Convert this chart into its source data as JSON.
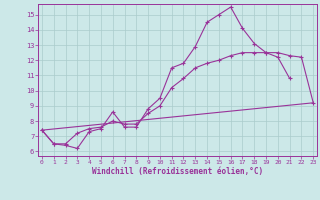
{
  "xlabel": "Windchill (Refroidissement éolien,°C)",
  "bg_color": "#cce8e8",
  "line_color": "#993399",
  "grid_color": "#aacccc",
  "xticks": [
    0,
    1,
    2,
    3,
    4,
    5,
    6,
    7,
    8,
    9,
    10,
    11,
    12,
    13,
    14,
    15,
    16,
    17,
    18,
    19,
    20,
    21,
    22,
    23
  ],
  "yticks": [
    6,
    7,
    8,
    9,
    10,
    11,
    12,
    13,
    14,
    15
  ],
  "line1_x": [
    0,
    1,
    2,
    3,
    4,
    5,
    6,
    7,
    8,
    9,
    10,
    11,
    12,
    13,
    14,
    15,
    16,
    17,
    18,
    19,
    20,
    21
  ],
  "line1_y": [
    7.4,
    6.5,
    6.4,
    6.2,
    7.3,
    7.5,
    8.6,
    7.6,
    7.6,
    8.8,
    9.5,
    11.5,
    11.8,
    12.9,
    14.5,
    15.0,
    15.5,
    14.1,
    13.1,
    12.5,
    12.2,
    10.8
  ],
  "line2_x": [
    0,
    1,
    2,
    3,
    4,
    5,
    6,
    7,
    8,
    9,
    10,
    11,
    12,
    13,
    14,
    15,
    16,
    17,
    18,
    19,
    20,
    21,
    22,
    23
  ],
  "line2_y": [
    7.4,
    6.5,
    6.5,
    7.2,
    7.5,
    7.6,
    8.0,
    7.8,
    7.8,
    8.5,
    9.0,
    10.2,
    10.8,
    11.5,
    11.8,
    12.0,
    12.3,
    12.5,
    12.5,
    12.5,
    12.5,
    12.3,
    12.2,
    9.2
  ],
  "line3_x": [
    0,
    23
  ],
  "line3_y": [
    7.4,
    9.2
  ]
}
